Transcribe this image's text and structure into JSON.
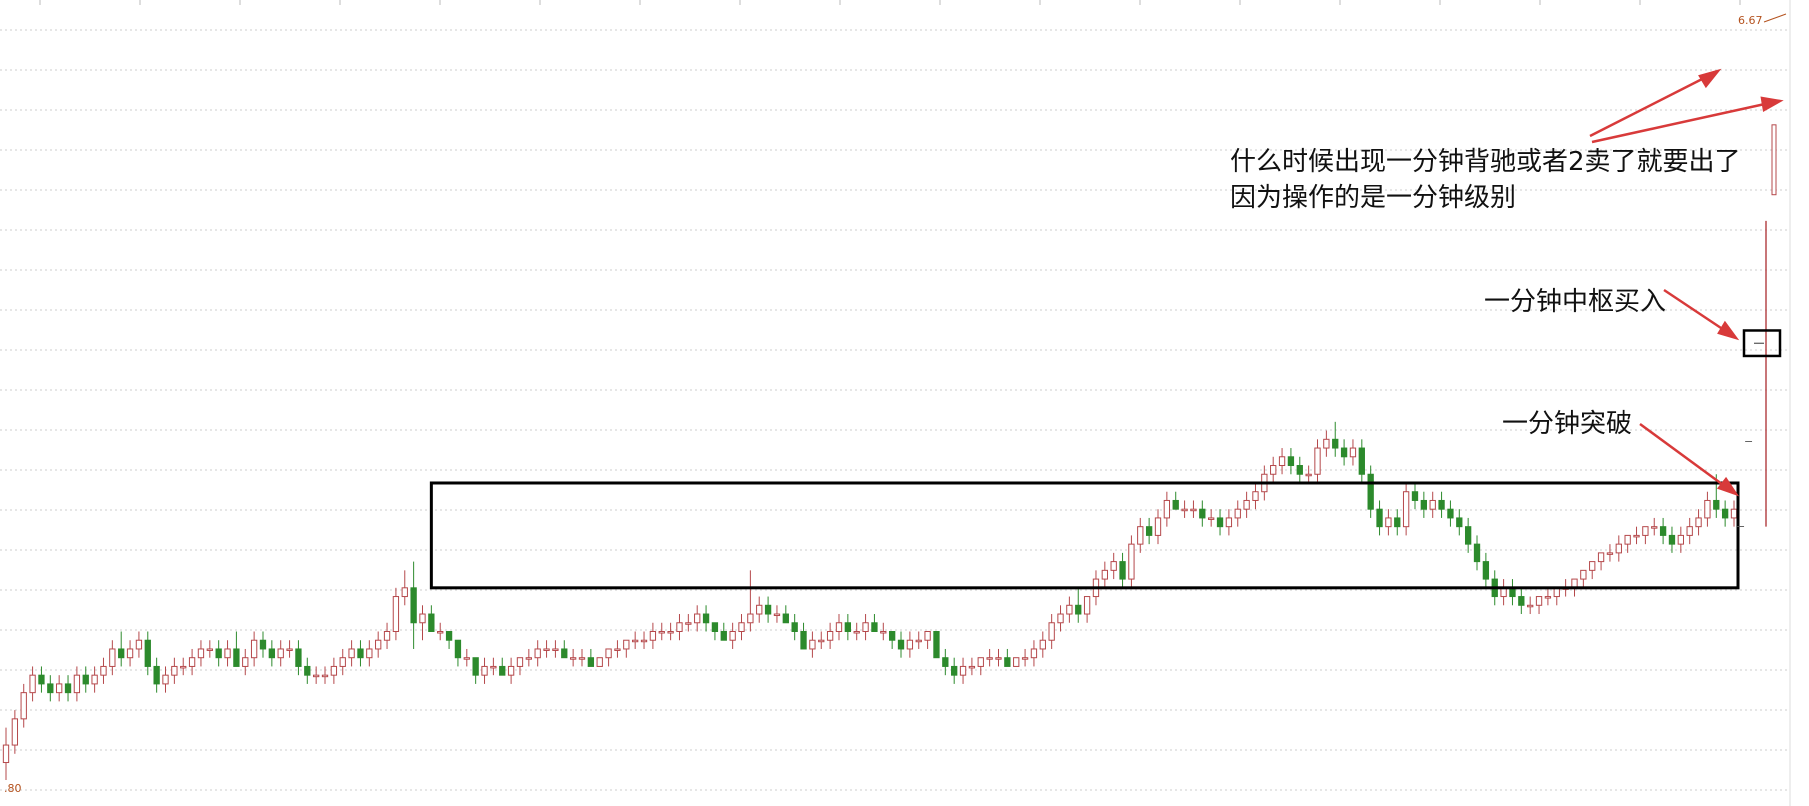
{
  "chart_data": {
    "type": "candlestick",
    "price_labels": {
      "top": "6.67",
      "bottom": ".80"
    },
    "ylim": [
      5.8,
      6.67
    ],
    "grid": true,
    "colors": {
      "up": "#b5484b",
      "down": "#2c8a2c",
      "box": "#000000",
      "arrow": "#d83a3a",
      "grid": "#cccccc"
    },
    "candles": [
      [
        5.82,
        5.86,
        5.8,
        5.84
      ],
      [
        5.84,
        5.88,
        5.83,
        5.87
      ],
      [
        5.87,
        5.91,
        5.86,
        5.9
      ],
      [
        5.9,
        5.93,
        5.89,
        5.92
      ],
      [
        5.92,
        5.93,
        5.9,
        5.91
      ],
      [
        5.91,
        5.92,
        5.89,
        5.9
      ],
      [
        5.9,
        5.92,
        5.89,
        5.91
      ],
      [
        5.91,
        5.92,
        5.89,
        5.9
      ],
      [
        5.9,
        5.93,
        5.89,
        5.92
      ],
      [
        5.92,
        5.93,
        5.9,
        5.91
      ],
      [
        5.91,
        5.93,
        5.9,
        5.92
      ],
      [
        5.92,
        5.94,
        5.91,
        5.93
      ],
      [
        5.93,
        5.96,
        5.92,
        5.95
      ],
      [
        5.95,
        5.97,
        5.93,
        5.94
      ],
      [
        5.94,
        5.96,
        5.93,
        5.95
      ],
      [
        5.95,
        5.97,
        5.94,
        5.96
      ],
      [
        5.96,
        5.97,
        5.92,
        5.93
      ],
      [
        5.93,
        5.94,
        5.9,
        5.91
      ],
      [
        5.91,
        5.93,
        5.9,
        5.92
      ],
      [
        5.92,
        5.94,
        5.91,
        5.93
      ],
      [
        5.93,
        5.94,
        5.92,
        5.93
      ],
      [
        5.93,
        5.95,
        5.92,
        5.94
      ],
      [
        5.94,
        5.96,
        5.93,
        5.95
      ],
      [
        5.95,
        5.96,
        5.94,
        5.95
      ],
      [
        5.95,
        5.96,
        5.93,
        5.94
      ],
      [
        5.94,
        5.96,
        5.93,
        5.95
      ],
      [
        5.95,
        5.97,
        5.93,
        5.93
      ],
      [
        5.93,
        5.95,
        5.92,
        5.94
      ],
      [
        5.94,
        5.97,
        5.93,
        5.96
      ],
      [
        5.96,
        5.97,
        5.94,
        5.95
      ],
      [
        5.95,
        5.96,
        5.93,
        5.94
      ],
      [
        5.94,
        5.96,
        5.93,
        5.95
      ],
      [
        5.95,
        5.96,
        5.94,
        5.95
      ],
      [
        5.95,
        5.96,
        5.92,
        5.93
      ],
      [
        5.93,
        5.94,
        5.91,
        5.92
      ],
      [
        5.92,
        5.93,
        5.91,
        5.92
      ],
      [
        5.92,
        5.93,
        5.91,
        5.92
      ],
      [
        5.92,
        5.94,
        5.91,
        5.93
      ],
      [
        5.93,
        5.95,
        5.92,
        5.94
      ],
      [
        5.94,
        5.96,
        5.93,
        5.95
      ],
      [
        5.95,
        5.96,
        5.93,
        5.94
      ],
      [
        5.94,
        5.96,
        5.93,
        5.95
      ],
      [
        5.95,
        5.97,
        5.94,
        5.96
      ],
      [
        5.96,
        5.98,
        5.95,
        5.97
      ],
      [
        5.97,
        6.02,
        5.96,
        6.01
      ],
      [
        6.01,
        6.04,
        6.0,
        6.02
      ],
      [
        6.02,
        6.05,
        5.95,
        5.98
      ],
      [
        5.98,
        6.0,
        5.96,
        5.99
      ],
      [
        5.99,
        6.0,
        5.97,
        5.97
      ],
      [
        5.97,
        5.98,
        5.96,
        5.97
      ],
      [
        5.97,
        5.97,
        5.95,
        5.96
      ],
      [
        5.96,
        5.96,
        5.93,
        5.94
      ],
      [
        5.94,
        5.95,
        5.93,
        5.94
      ],
      [
        5.94,
        5.94,
        5.91,
        5.92
      ],
      [
        5.92,
        5.94,
        5.91,
        5.93
      ],
      [
        5.93,
        5.94,
        5.92,
        5.93
      ],
      [
        5.93,
        5.94,
        5.92,
        5.92
      ],
      [
        5.92,
        5.94,
        5.91,
        5.93
      ],
      [
        5.93,
        5.94,
        5.92,
        5.94
      ],
      [
        5.94,
        5.95,
        5.93,
        5.94
      ],
      [
        5.94,
        5.96,
        5.93,
        5.95
      ],
      [
        5.95,
        5.96,
        5.94,
        5.95
      ],
      [
        5.95,
        5.96,
        5.94,
        5.95
      ],
      [
        5.95,
        5.96,
        5.94,
        5.94
      ],
      [
        5.94,
        5.95,
        5.93,
        5.94
      ],
      [
        5.94,
        5.95,
        5.93,
        5.94
      ],
      [
        5.94,
        5.95,
        5.93,
        5.93
      ],
      [
        5.93,
        5.94,
        5.93,
        5.94
      ],
      [
        5.94,
        5.95,
        5.93,
        5.95
      ],
      [
        5.95,
        5.96,
        5.94,
        5.95
      ],
      [
        5.95,
        5.96,
        5.94,
        5.96
      ],
      [
        5.96,
        5.97,
        5.95,
        5.96
      ],
      [
        5.96,
        5.97,
        5.95,
        5.96
      ],
      [
        5.96,
        5.98,
        5.95,
        5.97
      ],
      [
        5.97,
        5.98,
        5.96,
        5.97
      ],
      [
        5.97,
        5.98,
        5.96,
        5.97
      ],
      [
        5.97,
        5.99,
        5.96,
        5.98
      ],
      [
        5.98,
        5.99,
        5.97,
        5.98
      ],
      [
        5.98,
        6.0,
        5.97,
        5.99
      ],
      [
        5.99,
        6.0,
        5.97,
        5.98
      ],
      [
        5.98,
        5.98,
        5.96,
        5.97
      ],
      [
        5.97,
        5.98,
        5.96,
        5.96
      ],
      [
        5.96,
        5.98,
        5.95,
        5.97
      ],
      [
        5.97,
        5.99,
        5.96,
        5.98
      ],
      [
        5.98,
        6.04,
        5.97,
        5.99
      ],
      [
        5.99,
        6.01,
        5.98,
        6.0
      ],
      [
        6.0,
        6.01,
        5.98,
        5.99
      ],
      [
        5.99,
        6.0,
        5.98,
        5.99
      ],
      [
        5.99,
        6.0,
        5.98,
        5.98
      ],
      [
        5.98,
        5.99,
        5.96,
        5.97
      ],
      [
        5.97,
        5.98,
        5.95,
        5.95
      ],
      [
        5.95,
        5.97,
        5.94,
        5.96
      ],
      [
        5.96,
        5.97,
        5.95,
        5.96
      ],
      [
        5.96,
        5.98,
        5.95,
        5.97
      ],
      [
        5.97,
        5.99,
        5.96,
        5.98
      ],
      [
        5.98,
        5.99,
        5.96,
        5.97
      ],
      [
        5.97,
        5.98,
        5.96,
        5.97
      ],
      [
        5.97,
        5.99,
        5.96,
        5.98
      ],
      [
        5.98,
        5.99,
        5.97,
        5.97
      ],
      [
        5.97,
        5.98,
        5.96,
        5.97
      ],
      [
        5.97,
        5.97,
        5.95,
        5.96
      ],
      [
        5.96,
        5.97,
        5.94,
        5.95
      ],
      [
        5.95,
        5.97,
        5.94,
        5.96
      ],
      [
        5.96,
        5.97,
        5.95,
        5.96
      ],
      [
        5.96,
        5.97,
        5.95,
        5.97
      ],
      [
        5.97,
        5.97,
        5.94,
        5.94
      ],
      [
        5.94,
        5.95,
        5.92,
        5.93
      ],
      [
        5.93,
        5.94,
        5.91,
        5.92
      ],
      [
        5.92,
        5.94,
        5.91,
        5.93
      ],
      [
        5.93,
        5.94,
        5.92,
        5.93
      ],
      [
        5.93,
        5.94,
        5.92,
        5.94
      ],
      [
        5.94,
        5.95,
        5.93,
        5.94
      ],
      [
        5.94,
        5.95,
        5.93,
        5.94
      ],
      [
        5.94,
        5.95,
        5.93,
        5.93
      ],
      [
        5.93,
        5.94,
        5.93,
        5.94
      ],
      [
        5.94,
        5.95,
        5.93,
        5.94
      ],
      [
        5.94,
        5.96,
        5.93,
        5.95
      ],
      [
        5.95,
        5.97,
        5.94,
        5.96
      ],
      [
        5.96,
        5.99,
        5.95,
        5.98
      ],
      [
        5.98,
        6.0,
        5.97,
        5.99
      ],
      [
        5.99,
        6.01,
        5.98,
        6.0
      ],
      [
        6.0,
        6.02,
        5.98,
        5.99
      ],
      [
        5.99,
        6.01,
        5.98,
        6.01
      ],
      [
        6.01,
        6.04,
        6.0,
        6.03
      ],
      [
        6.03,
        6.05,
        6.02,
        6.04
      ],
      [
        6.04,
        6.06,
        6.03,
        6.05
      ],
      [
        6.05,
        6.06,
        6.02,
        6.03
      ],
      [
        6.03,
        6.08,
        6.02,
        6.07
      ],
      [
        6.07,
        6.1,
        6.06,
        6.09
      ],
      [
        6.09,
        6.1,
        6.07,
        6.08
      ],
      [
        6.08,
        6.11,
        6.07,
        6.1
      ],
      [
        6.1,
        6.13,
        6.09,
        6.12
      ],
      [
        6.12,
        6.13,
        6.11,
        6.11
      ],
      [
        6.11,
        6.12,
        6.1,
        6.11
      ],
      [
        6.11,
        6.12,
        6.1,
        6.11
      ],
      [
        6.11,
        6.12,
        6.09,
        6.1
      ],
      [
        6.1,
        6.11,
        6.09,
        6.1
      ],
      [
        6.1,
        6.11,
        6.08,
        6.09
      ],
      [
        6.09,
        6.11,
        6.08,
        6.1
      ],
      [
        6.1,
        6.12,
        6.09,
        6.11
      ],
      [
        6.11,
        6.13,
        6.1,
        6.12
      ],
      [
        6.12,
        6.14,
        6.11,
        6.13
      ],
      [
        6.13,
        6.16,
        6.12,
        6.15
      ],
      [
        6.15,
        6.17,
        6.14,
        6.16
      ],
      [
        6.16,
        6.18,
        6.15,
        6.17
      ],
      [
        6.17,
        6.18,
        6.15,
        6.16
      ],
      [
        6.16,
        6.17,
        6.14,
        6.15
      ],
      [
        6.15,
        6.16,
        6.14,
        6.15
      ],
      [
        6.15,
        6.19,
        6.14,
        6.18
      ],
      [
        6.18,
        6.2,
        6.17,
        6.19
      ],
      [
        6.19,
        6.21,
        6.17,
        6.18
      ],
      [
        6.18,
        6.19,
        6.16,
        6.17
      ],
      [
        6.17,
        6.19,
        6.16,
        6.18
      ],
      [
        6.18,
        6.19,
        6.14,
        6.15
      ],
      [
        6.15,
        6.16,
        6.1,
        6.11
      ],
      [
        6.11,
        6.12,
        6.08,
        6.09
      ],
      [
        6.09,
        6.11,
        6.08,
        6.1
      ],
      [
        6.1,
        6.11,
        6.08,
        6.09
      ],
      [
        6.09,
        6.14,
        6.08,
        6.13
      ],
      [
        6.13,
        6.14,
        6.11,
        6.12
      ],
      [
        6.12,
        6.13,
        6.1,
        6.11
      ],
      [
        6.11,
        6.13,
        6.1,
        6.12
      ],
      [
        6.12,
        6.13,
        6.1,
        6.11
      ],
      [
        6.11,
        6.12,
        6.09,
        6.1
      ],
      [
        6.1,
        6.11,
        6.08,
        6.09
      ],
      [
        6.09,
        6.1,
        6.06,
        6.07
      ],
      [
        6.07,
        6.08,
        6.04,
        6.05
      ],
      [
        6.05,
        6.06,
        6.02,
        6.03
      ],
      [
        6.03,
        6.04,
        6.0,
        6.01
      ],
      [
        6.01,
        6.03,
        6.0,
        6.02
      ],
      [
        6.02,
        6.03,
        6.0,
        6.01
      ],
      [
        6.01,
        6.02,
        5.99,
        6.0
      ],
      [
        6.0,
        6.01,
        5.99,
        6.0
      ],
      [
        6.0,
        6.01,
        5.99,
        6.01
      ],
      [
        6.01,
        6.02,
        6.0,
        6.01
      ],
      [
        6.01,
        6.02,
        6.0,
        6.02
      ],
      [
        6.02,
        6.03,
        6.01,
        6.02
      ],
      [
        6.02,
        6.03,
        6.01,
        6.03
      ],
      [
        6.03,
        6.04,
        6.02,
        6.04
      ],
      [
        6.04,
        6.05,
        6.03,
        6.05
      ],
      [
        6.05,
        6.06,
        6.04,
        6.06
      ],
      [
        6.06,
        6.07,
        6.05,
        6.06
      ],
      [
        6.06,
        6.08,
        6.05,
        6.07
      ],
      [
        6.07,
        6.08,
        6.06,
        6.08
      ],
      [
        6.08,
        6.09,
        6.07,
        6.08
      ],
      [
        6.08,
        6.09,
        6.07,
        6.09
      ],
      [
        6.09,
        6.1,
        6.08,
        6.09
      ],
      [
        6.09,
        6.1,
        6.07,
        6.08
      ],
      [
        6.08,
        6.09,
        6.06,
        6.07
      ],
      [
        6.07,
        6.09,
        6.06,
        6.08
      ],
      [
        6.08,
        6.1,
        6.07,
        6.09
      ],
      [
        6.09,
        6.11,
        6.08,
        6.1
      ],
      [
        6.1,
        6.13,
        6.09,
        6.12
      ],
      [
        6.12,
        6.15,
        6.1,
        6.11
      ],
      [
        6.11,
        6.12,
        6.09,
        6.1
      ],
      [
        6.1,
        6.12,
        6.09,
        6.11
      ]
    ],
    "zhongshu_box_range": [
      6.02,
      6.14
    ],
    "end_move": {
      "spike_range": [
        6.09,
        6.44
      ],
      "pivot_box_range": [
        6.29,
        6.31
      ],
      "big_candle_range": [
        6.47,
        6.55
      ]
    }
  },
  "annotations": {
    "sell_rule_line1": "什么时候出现一分钟背驰或者2卖了就要出了",
    "sell_rule_line2": "因为操作的是一分钟级别",
    "pivot_buy": "一分钟中枢买入",
    "breakout": "一分钟突破"
  },
  "misc": {
    "right_dash_1": "−",
    "right_dash_2": "−"
  }
}
